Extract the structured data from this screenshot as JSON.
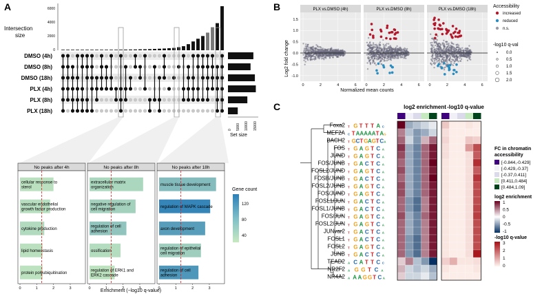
{
  "panelA": {
    "label": "A",
    "intersection_label_1": "Intersection",
    "intersection_label_2": "size",
    "size_ticks": [
      "6000",
      "4000",
      "2000",
      "0"
    ],
    "set_size_label": "Set size",
    "set_size_ticks": [
      "15000",
      "10000",
      "5000",
      "0"
    ],
    "sets": [
      "DMSO (4h)",
      "DMSO (8h)",
      "DMSO (18h)",
      "PLX (4h)",
      "PLX (8h)",
      "PLX (18h)"
    ],
    "set_sizes": [
      13500,
      12000,
      14300,
      14800,
      10300,
      5200
    ],
    "intersection_sizes": [
      40,
      40,
      45,
      50,
      55,
      55,
      60,
      60,
      65,
      70,
      70,
      80,
      90,
      100,
      110,
      120,
      140,
      150,
      170,
      200,
      230,
      260,
      300,
      350,
      450,
      600,
      900,
      1300,
      1700,
      2100,
      2600,
      3400,
      4000,
      6500
    ],
    "gene_count_label": "Gene count",
    "gene_count_ticks": [
      "120",
      "80",
      "40"
    ],
    "enrichment_label": "Enrichment (−log10 q-value)",
    "subpanels": [
      {
        "title": "No peaks after 4h",
        "terms": [
          "cellular response to sterol",
          "vascular endothelial growth factor production",
          "cytokine production",
          "lipid homeostasis",
          "protein polyubiquitination"
        ],
        "values": [
          2.0,
          1.8,
          1.45,
          1.35,
          1.35
        ],
        "counts": [
          40,
          42,
          46,
          40,
          38
        ],
        "ticks": [
          "0",
          "1",
          "2",
          "3"
        ]
      },
      {
        "title": "No peaks after 8h",
        "terms": [
          "extracellular matrix organization",
          "negative regulation of cell migration",
          "regulation of cell adhesion",
          "ossification",
          "regulation of ERK1 and ERK2 cascade"
        ],
        "values": [
          3.2,
          2.75,
          2.2,
          1.85,
          1.5
        ],
        "counts": [
          50,
          56,
          70,
          44,
          38
        ],
        "ticks": [
          "0",
          "1",
          "2",
          "3"
        ]
      },
      {
        "title": "No peaks after 18h",
        "terms": [
          "muscle tissue development",
          "regulation of MAPK cascade",
          "axon development",
          "regulation of epithelial cell migration",
          "regulation of cell adhesion"
        ],
        "values": [
          3.4,
          3.05,
          2.75,
          2.5,
          2.35
        ],
        "counts": [
          80,
          138,
          112,
          60,
          120
        ],
        "ticks": [
          "0",
          "1",
          "2",
          "3"
        ]
      }
    ]
  },
  "panelB": {
    "label": "B",
    "facets": [
      "PLX vs.DMSO (4h)",
      "PLX vs.DMSO (8h)",
      "PLX vs.DMSO (18h)"
    ],
    "ylabel": "Log2 fold change",
    "xlabel": "Normalized mean counts",
    "y_ticks": [
      "1.5",
      "1.0",
      "0.5",
      "0.0",
      "-0.5",
      "-1.0"
    ],
    "x_ticks": [
      "0",
      "2",
      "4",
      "6"
    ],
    "legend_accessibility_title": "Accessibility",
    "legend_accessibility": [
      {
        "label": "increased",
        "color": "#b2182b"
      },
      {
        "label": "reduced",
        "color": "#2b8cbe"
      },
      {
        "label": "n.s.",
        "color": "#9a9aa8"
      }
    ],
    "legend_q_title": "-log10 q-val",
    "legend_q": [
      "0.0",
      "0.5",
      "1.0",
      "1.5",
      "2.0"
    ]
  },
  "panelC": {
    "label": "C",
    "header_log2": "log2 enrichment",
    "header_q": "-log10 q-value",
    "motifs": [
      "Foxa2",
      "MEF2A",
      "BACH2",
      "FOS",
      "JUND",
      "FOS/JUNB",
      "FOSL2/JUND",
      "FOSB/JUNB",
      "FOSL2/JUNB",
      "FOS/JUND",
      "FOSL1/JUN",
      "FOSL1/JUNB",
      "FOS/JUN",
      "FOSL2/JUN",
      "JUNvar2",
      "FOSL1",
      "FOSL2",
      "JUNB",
      "TEAD2",
      "NR2F2",
      "NR4A2"
    ],
    "logos": [
      "TGTTTAC",
      "CTAAAAATAG",
      "TGCTGAGTCA",
      "TGAGTCA",
      "TGAGTCA",
      "TGACTCA",
      "TGAGTCA",
      "TGACTCA",
      "TGAGTCA",
      "TGAGTCA",
      "TGACTCA",
      "TGACTCA",
      "TGAGTCA",
      "TGAGTCA",
      "TGACTCA",
      "TGACTCA",
      "TGAGTCA",
      "TGACTCA",
      "ACATTCC",
      "AGGTCA",
      "AAAGGTCA"
    ],
    "top_colors": [
      "#3f007d",
      "#f2f0f7",
      "#dadaeb",
      "#c7e9c0",
      "#00441b"
    ],
    "log2_matrix": [
      [
        1.0,
        -0.4,
        -0.3,
        -0.2,
        -0.1
      ],
      [
        0.5,
        -0.3,
        -0.5,
        -0.4,
        -0.2
      ],
      [
        0.6,
        -0.2,
        -0.5,
        0.3,
        0.6
      ],
      [
        0.8,
        -0.4,
        -0.6,
        0.6,
        0.9
      ],
      [
        0.7,
        -0.4,
        -0.6,
        0.6,
        0.9
      ],
      [
        0.6,
        -0.4,
        -0.6,
        0.6,
        1.0
      ],
      [
        0.7,
        -0.4,
        -0.6,
        0.6,
        0.9
      ],
      [
        0.6,
        -0.4,
        -0.6,
        0.6,
        1.0
      ],
      [
        0.7,
        -0.4,
        -0.6,
        0.6,
        0.9
      ],
      [
        0.7,
        -0.4,
        -0.6,
        0.6,
        0.9
      ],
      [
        0.6,
        -0.5,
        -0.7,
        0.5,
        0.9
      ],
      [
        0.6,
        -0.5,
        -0.7,
        0.5,
        0.9
      ],
      [
        0.7,
        -0.4,
        -0.6,
        0.6,
        0.9
      ],
      [
        0.6,
        -0.4,
        -0.6,
        0.5,
        0.9
      ],
      [
        0.6,
        -0.4,
        -0.6,
        0.5,
        0.9
      ],
      [
        0.6,
        -0.5,
        -0.7,
        0.5,
        0.9
      ],
      [
        0.6,
        -0.5,
        -0.7,
        0.5,
        0.9
      ],
      [
        0.6,
        -0.5,
        -0.7,
        0.5,
        0.9
      ],
      [
        0.2,
        0.5,
        -0.3,
        -0.5,
        -1.0
      ],
      [
        0.3,
        -0.2,
        -0.3,
        -0.2,
        -0.4
      ],
      [
        0.2,
        -0.2,
        -0.2,
        -0.1,
        -0.3
      ]
    ],
    "q_matrix": [
      [
        0.6,
        0.1,
        0.1,
        0.2,
        0.1
      ],
      [
        0.3,
        0.1,
        0.1,
        0.1,
        0.1
      ],
      [
        0.4,
        0.1,
        0.1,
        0.6,
        0.5
      ],
      [
        0.3,
        0.1,
        0.1,
        1.2,
        2.2
      ],
      [
        0.3,
        0.1,
        0.1,
        0.3,
        2.0
      ],
      [
        0.2,
        0.1,
        0.1,
        0.3,
        2.6
      ],
      [
        0.2,
        0.1,
        0.1,
        0.3,
        2.0
      ],
      [
        0.2,
        0.1,
        0.1,
        0.3,
        2.5
      ],
      [
        0.2,
        0.1,
        0.1,
        0.3,
        2.2
      ],
      [
        0.2,
        0.1,
        0.1,
        0.3,
        2.2
      ],
      [
        0.2,
        0.1,
        0.1,
        0.3,
        2.2
      ],
      [
        0.2,
        0.1,
        0.1,
        0.3,
        2.3
      ],
      [
        0.2,
        0.1,
        0.1,
        0.3,
        2.4
      ],
      [
        0.2,
        0.1,
        0.1,
        0.3,
        2.2
      ],
      [
        0.2,
        0.1,
        0.1,
        0.3,
        2.2
      ],
      [
        0.2,
        0.1,
        0.1,
        0.3,
        2.2
      ],
      [
        0.2,
        0.1,
        0.1,
        0.3,
        2.2
      ],
      [
        0.2,
        0.1,
        0.1,
        0.3,
        2.9
      ],
      [
        0.5,
        0.9,
        0.2,
        0.2,
        0.3
      ],
      [
        0.2,
        0.1,
        0.1,
        0.1,
        0.2
      ],
      [
        0.1,
        0.1,
        0.1,
        0.1,
        0.1
      ]
    ],
    "legend_fc_title_1": "FC in chromatin",
    "legend_fc_title_2": "accessibility",
    "legend_fc": [
      {
        "label": "[-0.844,-0.429]",
        "color": "#3f007d"
      },
      {
        "label": "[-0.429,-0.37]",
        "color": "#f2f0f7"
      },
      {
        "label": "[-0.37,0.411]",
        "color": "#dadaeb"
      },
      {
        "label": "[0.411,0.484]",
        "color": "#c7e9c0"
      },
      {
        "label": "[0.484,1.09]",
        "color": "#00441b"
      }
    ],
    "legend_log2_title": "log2 enrichment",
    "legend_log2_ticks": [
      "1",
      "0.5",
      "0",
      "-0.5",
      "-1"
    ],
    "legend_q_title": "-log10 q-value",
    "legend_q_ticks": [
      "3",
      "2",
      "1",
      "0"
    ]
  }
}
